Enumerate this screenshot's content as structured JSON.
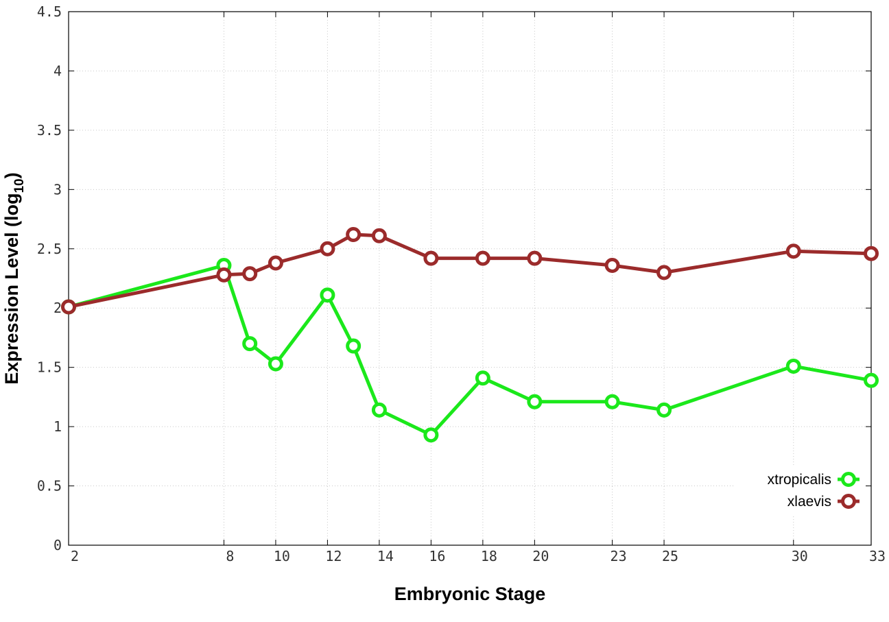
{
  "chart_data": {
    "type": "line",
    "xlabel": "Embryonic Stage",
    "ylabel_main": "Expression Level (log",
    "ylabel_sub": "10",
    "ylabel_close": ")",
    "xlim": [
      2,
      33
    ],
    "ylim": [
      0,
      4.5
    ],
    "x_ticks": [
      2,
      8,
      10,
      12,
      14,
      16,
      18,
      20,
      23,
      25,
      30,
      33
    ],
    "y_ticks": [
      0,
      0.5,
      1,
      1.5,
      2,
      2.5,
      3,
      3.5,
      4,
      4.5
    ],
    "grid": true,
    "legend_position": "bottom-right",
    "series": [
      {
        "name": "xtropicalis",
        "color": "#1be81b",
        "x": [
          2,
          8,
          9,
          10,
          12,
          13,
          14,
          16,
          18,
          20,
          23,
          25,
          30,
          33
        ],
        "y": [
          2.01,
          2.36,
          1.7,
          1.53,
          2.11,
          1.68,
          1.14,
          0.93,
          1.41,
          1.21,
          1.21,
          1.14,
          1.51,
          1.39
        ]
      },
      {
        "name": "xlaevis",
        "color": "#9b2b2b",
        "x": [
          2,
          8,
          9,
          10,
          12,
          13,
          14,
          16,
          18,
          20,
          23,
          25,
          30,
          33
        ],
        "y": [
          2.01,
          2.28,
          2.29,
          2.38,
          2.5,
          2.62,
          2.61,
          2.42,
          2.42,
          2.42,
          2.36,
          2.3,
          2.48,
          2.46
        ]
      }
    ]
  }
}
